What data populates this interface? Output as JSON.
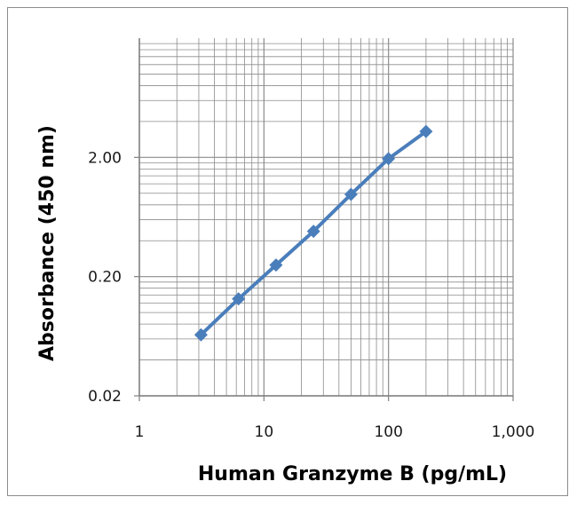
{
  "chart_data": {
    "type": "line",
    "title": "",
    "xlabel": "Human Granzyme B (pg/mL)",
    "ylabel": "Absorbance (450 nm)",
    "x_scale": "log",
    "y_scale": "log",
    "xlim": [
      1,
      1000
    ],
    "ylim": [
      0.02,
      20
    ],
    "x_ticks": [
      {
        "value": 1,
        "label": "1"
      },
      {
        "value": 10,
        "label": "10"
      },
      {
        "value": 100,
        "label": "100"
      },
      {
        "value": 1000,
        "label": "1,000"
      }
    ],
    "y_ticks": [
      {
        "value": 0.02,
        "label": "0.02"
      },
      {
        "value": 0.2,
        "label": "0.20"
      },
      {
        "value": 2,
        "label": "2.00"
      }
    ],
    "grid": true,
    "legend": "none",
    "colors": {
      "series": "#4a7ebb",
      "grid": "#8c8c8c",
      "frame": "#8c8c8c"
    },
    "series": [
      {
        "marker": "diamond",
        "x": [
          3.125,
          6.25,
          12.5,
          25,
          50,
          100,
          200
        ],
        "y": [
          0.065,
          0.13,
          0.25,
          0.48,
          0.98,
          1.95,
          3.3
        ]
      }
    ]
  }
}
